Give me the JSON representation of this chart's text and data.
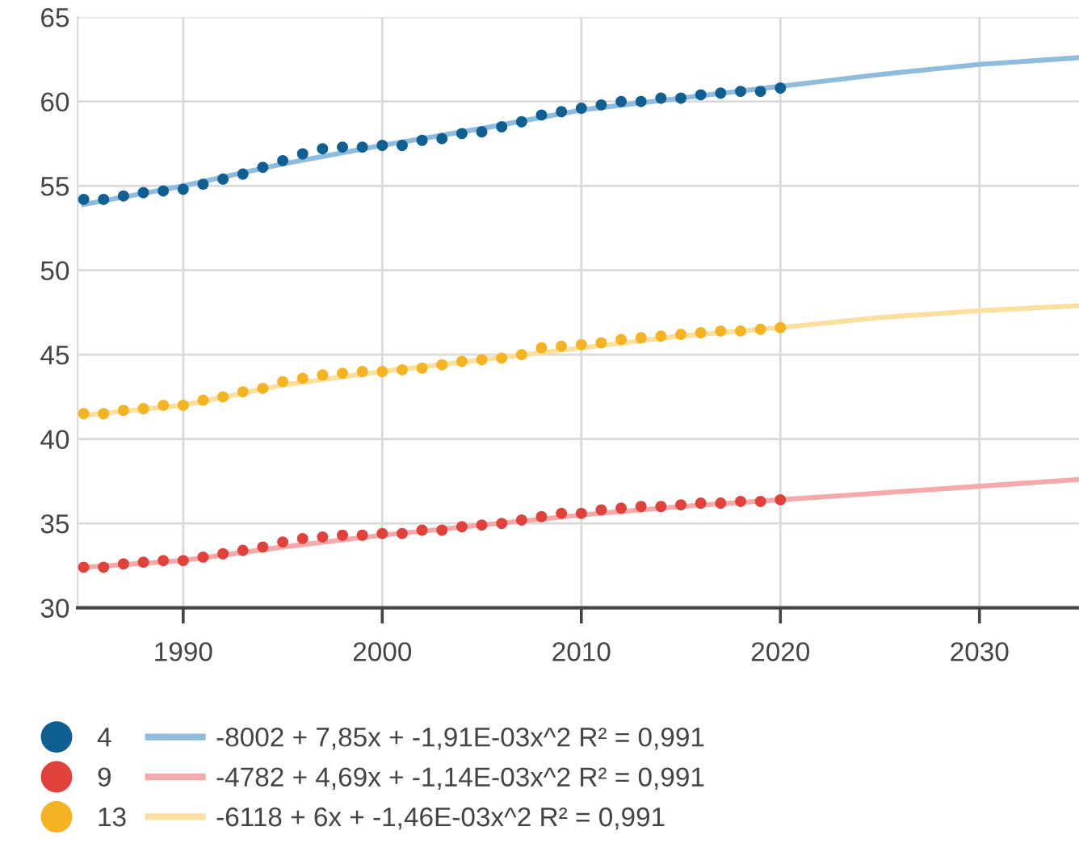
{
  "chart_data": {
    "type": "scatter",
    "x": [
      1985,
      1986,
      1987,
      1988,
      1989,
      1990,
      1991,
      1992,
      1993,
      1994,
      1995,
      1996,
      1997,
      1998,
      1999,
      2000,
      2001,
      2002,
      2003,
      2004,
      2005,
      2006,
      2007,
      2008,
      2009,
      2010,
      2011,
      2012,
      2013,
      2014,
      2015,
      2016,
      2017,
      2018,
      2019,
      2020
    ],
    "series": [
      {
        "name": "4",
        "color": "#0f5f93",
        "marker": "circle",
        "values": [
          54.2,
          54.2,
          54.4,
          54.6,
          54.7,
          54.8,
          55.1,
          55.4,
          55.7,
          56.1,
          56.5,
          56.9,
          57.2,
          57.3,
          57.3,
          57.4,
          57.4,
          57.7,
          57.8,
          58.1,
          58.2,
          58.5,
          58.8,
          59.2,
          59.4,
          59.6,
          59.8,
          60.0,
          60.0,
          60.2,
          60.2,
          60.4,
          60.5,
          60.6,
          60.6,
          60.8
        ]
      },
      {
        "name": "9",
        "color": "#e0413a",
        "marker": "circle",
        "values": [
          32.4,
          32.4,
          32.6,
          32.7,
          32.8,
          32.8,
          33.0,
          33.2,
          33.4,
          33.6,
          33.9,
          34.1,
          34.2,
          34.3,
          34.3,
          34.4,
          34.4,
          34.6,
          34.6,
          34.8,
          34.9,
          35.0,
          35.2,
          35.4,
          35.6,
          35.6,
          35.8,
          35.9,
          36.0,
          36.0,
          36.1,
          36.2,
          36.2,
          36.3,
          36.3,
          36.4
        ]
      },
      {
        "name": "13",
        "color": "#f6b321",
        "marker": "circle",
        "values": [
          41.5,
          41.5,
          41.7,
          41.8,
          42.0,
          42.0,
          42.3,
          42.5,
          42.8,
          43.0,
          43.4,
          43.6,
          43.8,
          43.9,
          44.0,
          44.0,
          44.1,
          44.2,
          44.4,
          44.6,
          44.7,
          44.8,
          45.0,
          45.4,
          45.5,
          45.6,
          45.7,
          45.9,
          46.0,
          46.1,
          46.2,
          46.3,
          46.4,
          46.4,
          46.5,
          46.6
        ]
      },
      {
        "name": "-8002 + 7,85x + -1,91E-03x^2 R² = 0,991",
        "type": "line",
        "color": "#8fbbdc",
        "x": [
          1985,
          1990,
          1995,
          2000,
          2005,
          2010,
          2015,
          2020,
          2025,
          2030,
          2035
        ],
        "values": [
          53.9,
          55.0,
          56.3,
          57.4,
          58.4,
          59.5,
          60.2,
          60.9,
          61.6,
          62.2,
          62.6
        ]
      },
      {
        "name": "-4782 + 4,69x + -1,14E-03x^2 R² = 0,991",
        "type": "line",
        "color": "#f4aaaa",
        "x": [
          1985,
          1990,
          1995,
          2000,
          2005,
          2010,
          2015,
          2020,
          2025,
          2030,
          2035
        ],
        "values": [
          32.4,
          32.8,
          33.6,
          34.3,
          34.9,
          35.5,
          36.0,
          36.4,
          36.8,
          37.2,
          37.6
        ]
      },
      {
        "name": "-6118 + 6x + -1,46E-03x^2 R² = 0,991",
        "type": "line",
        "color": "#fbdf9f",
        "x": [
          1985,
          1990,
          1995,
          2000,
          2005,
          2010,
          2015,
          2020,
          2025,
          2030,
          2035
        ],
        "values": [
          41.4,
          42.0,
          43.2,
          44.0,
          44.7,
          45.4,
          46.1,
          46.6,
          47.2,
          47.6,
          47.9
        ]
      }
    ],
    "xlim": [
      1984.7,
      2035
    ],
    "xticks": [
      1990,
      2000,
      2010,
      2020,
      2030
    ],
    "ylim": [
      30,
      65
    ],
    "yticks": [
      30,
      35,
      40,
      45,
      50,
      55,
      60,
      65
    ],
    "grid": true,
    "legend": "bottom"
  }
}
